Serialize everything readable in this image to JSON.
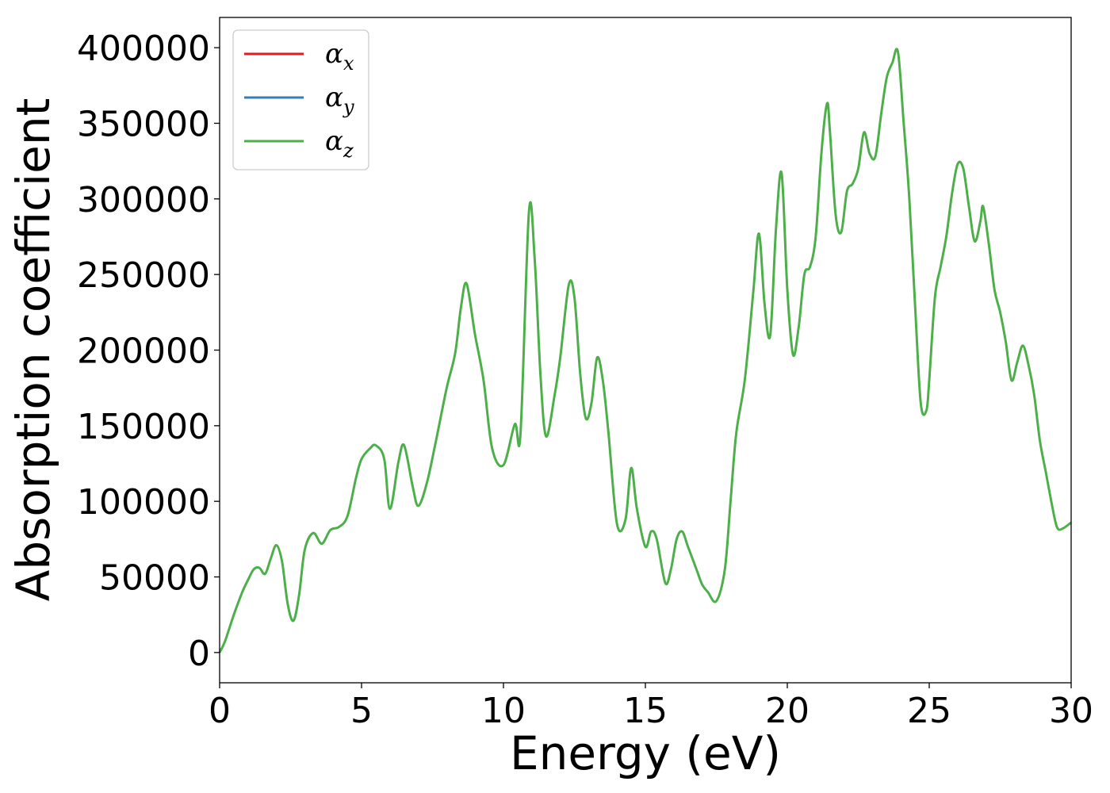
{
  "chart_data": {
    "type": "line",
    "title": "",
    "xlabel": "Energy (eV)",
    "ylabel": "Absorption coefficient",
    "xlim": [
      0,
      30
    ],
    "ylim": [
      -20000,
      420000
    ],
    "xticks": [
      0,
      5,
      10,
      15,
      20,
      25,
      30
    ],
    "xtick_labels": [
      "0",
      "5",
      "10",
      "15",
      "20",
      "25",
      "30"
    ],
    "yticks": [
      0,
      50000,
      100000,
      150000,
      200000,
      250000,
      300000,
      350000,
      400000
    ],
    "ytick_labels": [
      "0",
      "50000",
      "100000",
      "150000",
      "200000",
      "250000",
      "300000",
      "350000",
      "400000"
    ],
    "grid": false,
    "legend_position": "top-left",
    "series": [
      {
        "name": "α",
        "subscript": "x",
        "color": "#e41a1c",
        "x": [],
        "y": []
      },
      {
        "name": "α",
        "subscript": "y",
        "color": "#377eb8",
        "x": [],
        "y": []
      },
      {
        "name": "α",
        "subscript": "z",
        "color": "#4daf4a",
        "x": [
          0,
          0.2,
          0.5,
          0.8,
          1.0,
          1.2,
          1.4,
          1.6,
          1.8,
          2.0,
          2.2,
          2.4,
          2.6,
          2.8,
          3.0,
          3.3,
          3.6,
          3.9,
          4.2,
          4.5,
          4.8,
          5.0,
          5.3,
          5.5,
          5.8,
          6.0,
          6.3,
          6.5,
          6.8,
          7.0,
          7.3,
          7.6,
          8.0,
          8.3,
          8.5,
          8.7,
          9.0,
          9.3,
          9.6,
          10.0,
          10.4,
          10.6,
          10.9,
          11.1,
          11.3,
          11.5,
          11.8,
          12.0,
          12.3,
          12.5,
          12.7,
          12.9,
          13.1,
          13.3,
          13.5,
          13.7,
          14.0,
          14.3,
          14.5,
          14.7,
          15.0,
          15.2,
          15.4,
          15.7,
          15.9,
          16.1,
          16.3,
          16.5,
          16.8,
          17.0,
          17.2,
          17.5,
          17.8,
          18.0,
          18.2,
          18.5,
          18.8,
          19.0,
          19.2,
          19.4,
          19.6,
          19.8,
          20.0,
          20.2,
          20.4,
          20.6,
          20.8,
          21.0,
          21.2,
          21.4,
          21.5,
          21.7,
          21.9,
          22.1,
          22.3,
          22.5,
          22.7,
          22.9,
          23.1,
          23.3,
          23.5,
          23.7,
          23.9,
          24.1,
          24.3,
          24.5,
          24.7,
          24.9,
          25.0,
          25.2,
          25.4,
          25.6,
          25.8,
          26.0,
          26.2,
          26.4,
          26.6,
          26.8,
          26.9,
          27.1,
          27.3,
          27.5,
          27.7,
          27.9,
          28.1,
          28.3,
          28.5,
          28.7,
          28.9,
          29.1,
          29.3,
          29.5,
          29.7,
          30.0
        ],
        "y": [
          0,
          8000,
          25000,
          40000,
          48000,
          55000,
          56000,
          52000,
          62000,
          71000,
          60000,
          32000,
          21000,
          38000,
          68000,
          79000,
          72000,
          81000,
          83000,
          90000,
          115000,
          128000,
          135000,
          137000,
          128000,
          95000,
          126000,
          137000,
          110000,
          97000,
          112000,
          138000,
          175000,
          198000,
          228000,
          244000,
          210000,
          180000,
          135000,
          124000,
          151000,
          145000,
          292000,
          260000,
          185000,
          143000,
          170000,
          195000,
          243000,
          235000,
          185000,
          155000,
          165000,
          195000,
          180000,
          145000,
          85000,
          88000,
          122000,
          95000,
          70000,
          80000,
          75000,
          46000,
          55000,
          75000,
          80000,
          70000,
          55000,
          45000,
          40000,
          34000,
          55000,
          100000,
          145000,
          180000,
          238000,
          277000,
          230000,
          210000,
          280000,
          317000,
          240000,
          197000,
          215000,
          250000,
          255000,
          275000,
          330000,
          363000,
          345000,
          290000,
          278000,
          305000,
          310000,
          320000,
          344000,
          330000,
          328000,
          355000,
          380000,
          390000,
          397000,
          350000,
          300000,
          230000,
          165000,
          160000,
          180000,
          235000,
          255000,
          275000,
          303000,
          323000,
          320000,
          295000,
          272000,
          285000,
          295000,
          270000,
          240000,
          225000,
          205000,
          180000,
          192000,
          203000,
          190000,
          170000,
          140000,
          120000,
          100000,
          83000,
          82000,
          86000
        ]
      }
    ]
  }
}
